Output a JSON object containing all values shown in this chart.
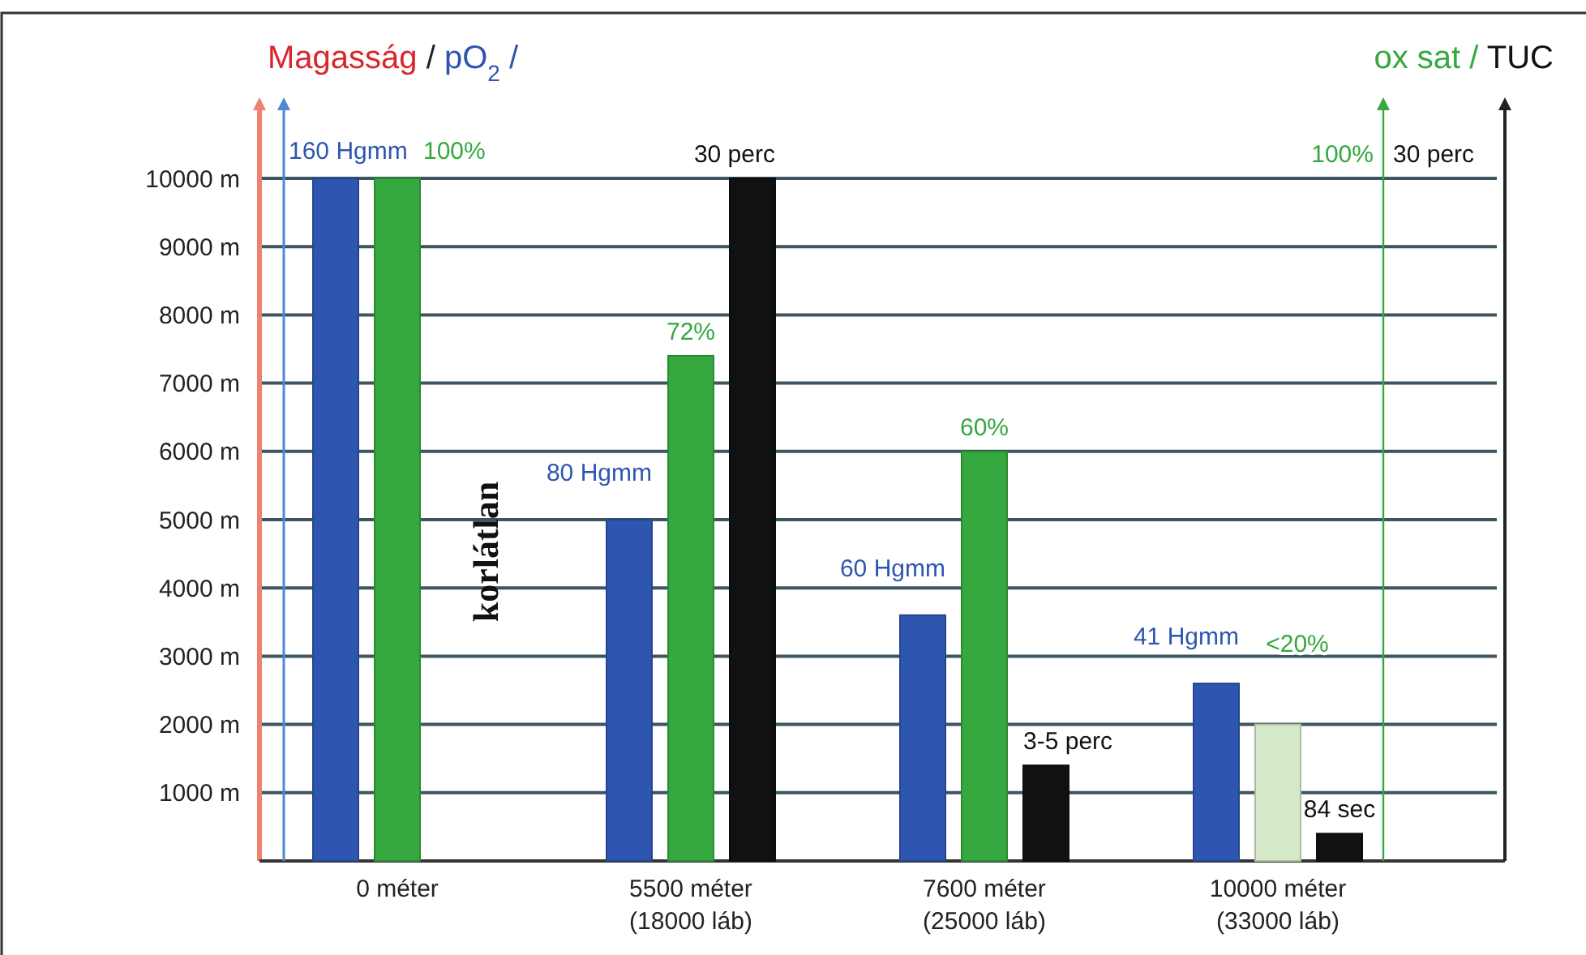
{
  "chart_data": {
    "type": "bar",
    "ylabel": "Magasság / pO$_{2}$ /",
    "y2label": "ox sat / TUC",
    "categories": [
      "0 méter",
      "5500 méter\n(18000 láb)",
      "7600 méter\n(25000 láb)",
      "10000 méter\n(33000 láb)"
    ],
    "series": [
      {
        "color": "#2e55b0",
        "values": [
          10000,
          5000,
          3600,
          2600
        ]
      },
      {
        "color": "#35a83f",
        "colors": [
          "#35a83f",
          "#35a83f",
          "#35a83f",
          "#d5e8c8"
        ],
        "values": [
          10000,
          7400,
          6000,
          2000
        ]
      },
      {
        "color": "#111111",
        "values": [
          null,
          10000,
          1400,
          400
        ]
      }
    ],
    "ylim": [
      0,
      10000
    ],
    "yticks": [
      {
        "value": 1000,
        "label": "1000 m"
      },
      {
        "value": 2000,
        "label": "2000 m"
      },
      {
        "value": 3000,
        "label": "3000 m"
      },
      {
        "value": 4000,
        "label": "4000 m"
      },
      {
        "value": 5000,
        "label": "5000 m"
      },
      {
        "value": 6000,
        "label": "6000 m"
      },
      {
        "value": 7000,
        "label": "7000 m"
      },
      {
        "value": 8000,
        "label": "8000 m"
      },
      {
        "value": 9000,
        "label": "9000 m"
      },
      {
        "value": 10000,
        "label": "10000 m"
      }
    ],
    "grid": "y",
    "annotations": [
      "160 Hgmm",
      "100%",
      "80 Hgmm",
      "72%",
      "30 perc",
      "60 Hgmm",
      "60%",
      "3-5 perc",
      "41 Hgmm",
      "<20%",
      "84 sec",
      "korlátlan",
      "100%",
      "30 perc"
    ]
  }
}
